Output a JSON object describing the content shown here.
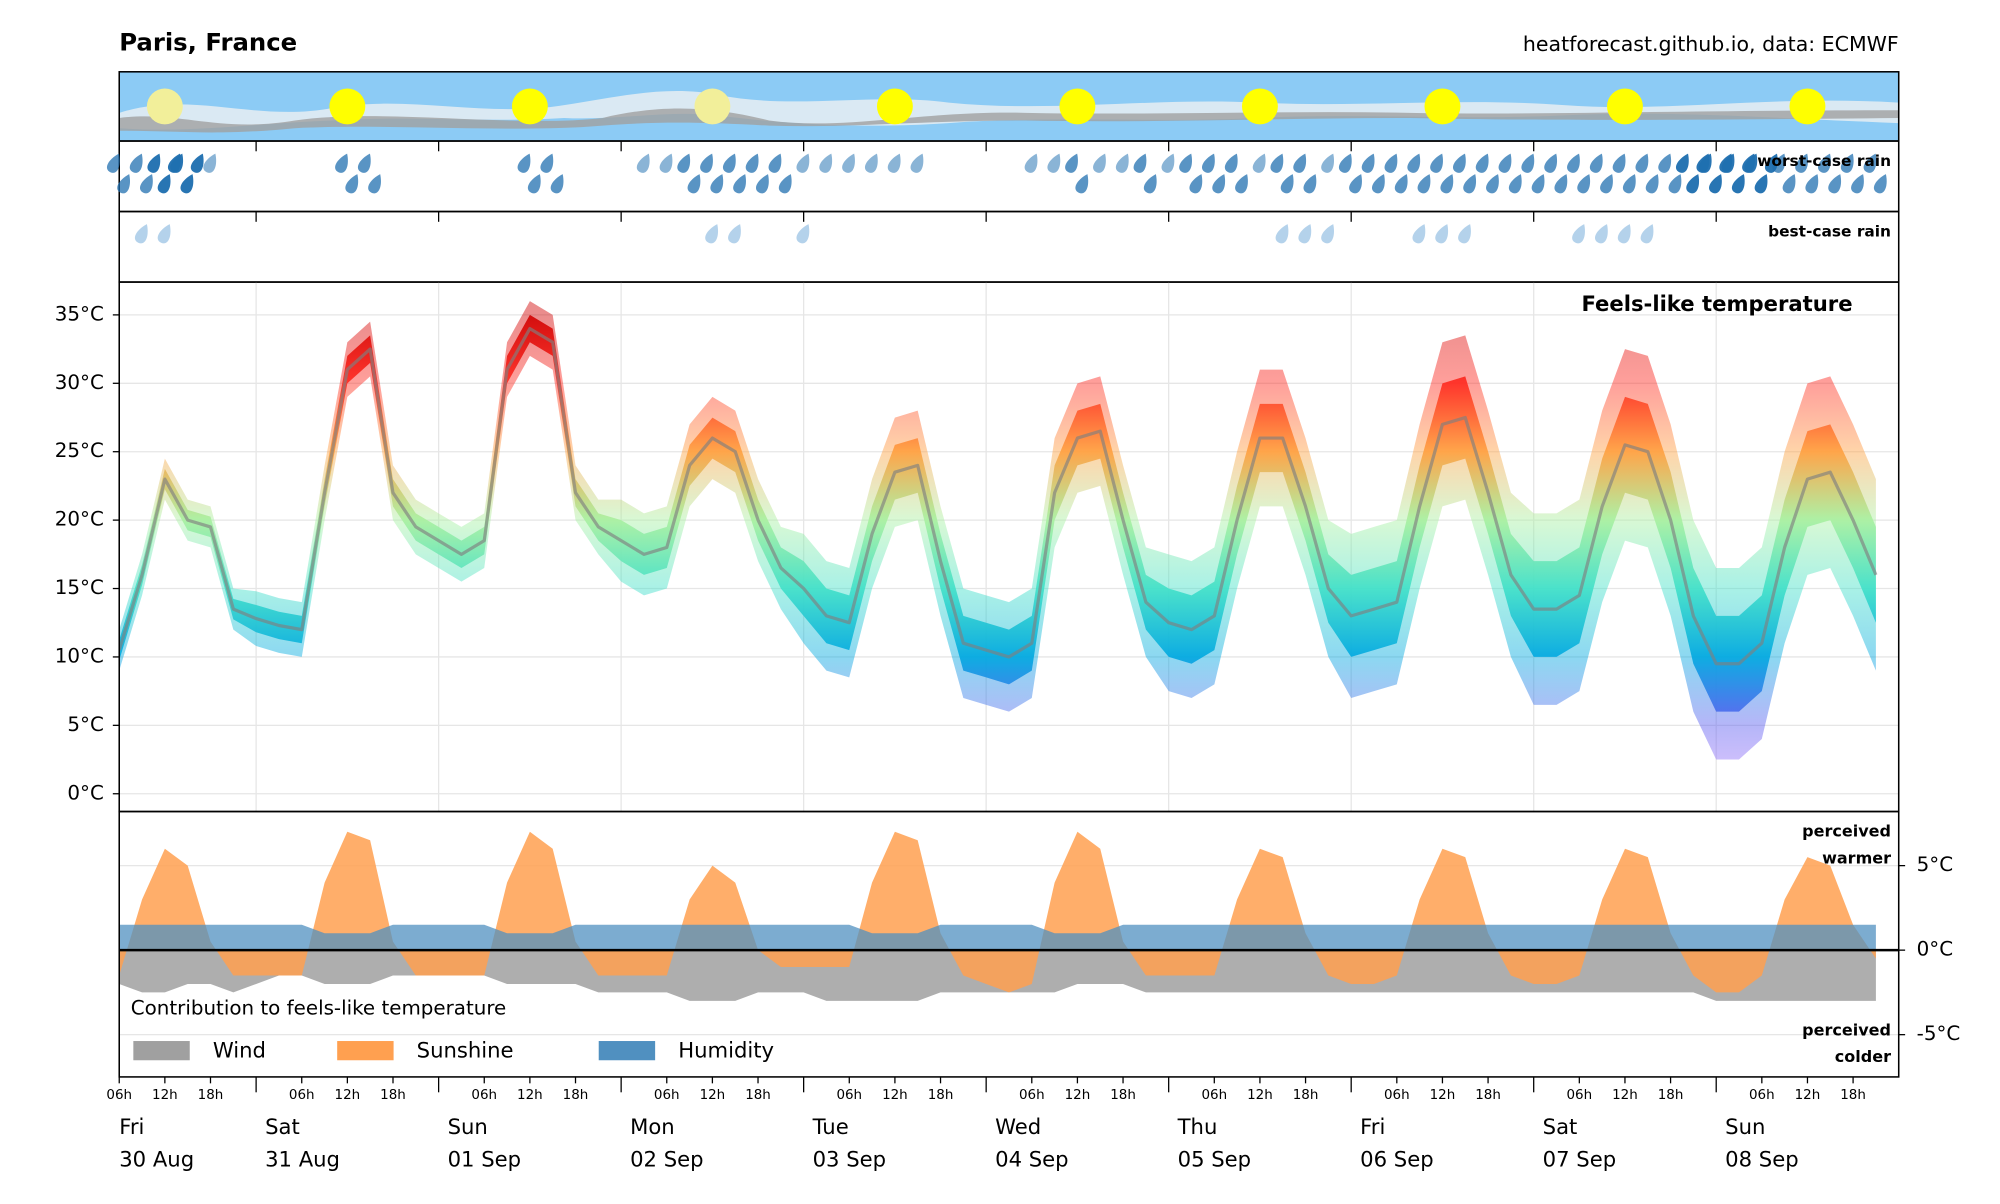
{
  "chart_data": {
    "type": "meteogram",
    "title": "Paris, France",
    "subtitle": "heatforecast.github.io, data: ECMWF",
    "x": [
      6,
      9,
      12,
      15,
      18,
      21,
      24,
      27,
      30,
      33,
      36,
      39,
      42,
      45,
      48,
      51,
      54,
      57,
      60,
      63,
      66,
      69,
      72,
      75,
      78,
      81,
      84,
      87,
      90,
      93,
      96,
      99,
      102,
      105,
      108,
      111,
      114,
      117,
      120,
      123,
      126,
      129,
      132,
      135,
      138,
      141,
      144,
      147,
      150,
      153,
      156,
      159,
      162,
      165,
      168,
      171,
      174,
      177,
      180,
      183,
      186,
      189,
      192,
      195,
      198,
      201,
      204,
      207,
      210,
      213,
      216,
      219,
      222,
      225,
      228,
      231,
      234,
      237
    ],
    "xlim": [
      6,
      240
    ],
    "days": [
      {
        "value": 0,
        "weekday": "Fri",
        "date": "30 Aug"
      },
      {
        "value": 24,
        "weekday": "Sat",
        "date": "31 Aug"
      },
      {
        "value": 48,
        "weekday": "Sun",
        "date": "01 Sep"
      },
      {
        "value": 72,
        "weekday": "Mon",
        "date": "02 Sep"
      },
      {
        "value": 96,
        "weekday": "Tue",
        "date": "03 Sep"
      },
      {
        "value": 120,
        "weekday": "Wed",
        "date": "04 Sep"
      },
      {
        "value": 144,
        "weekday": "Thu",
        "date": "05 Sep"
      },
      {
        "value": 168,
        "weekday": "Fri",
        "date": "06 Sep"
      },
      {
        "value": 192,
        "weekday": "Sat",
        "date": "07 Sep"
      },
      {
        "value": 216,
        "weekday": "Sun",
        "date": "08 Sep"
      }
    ],
    "hour_ticks": [
      {
        "value": 6,
        "label": "06h"
      },
      {
        "value": 12,
        "label": "12h"
      },
      {
        "value": 18,
        "label": "18h"
      }
    ],
    "rain": {
      "series": [
        {
          "name": "worst-case rain",
          "color": "#1f6fb0",
          "values": [
            2,
            2,
            3,
            3,
            1,
            0,
            0,
            0,
            0,
            0,
            2,
            2,
            0,
            0,
            0,
            0,
            0,
            0,
            2,
            2,
            0,
            0,
            0,
            1,
            1,
            2,
            2,
            2,
            2,
            2,
            1,
            1,
            1,
            1,
            1,
            1,
            0,
            0,
            0,
            0,
            1,
            1,
            2,
            1,
            1,
            2,
            1,
            2,
            2,
            2,
            1,
            2,
            2,
            1,
            2,
            2,
            2,
            2,
            2,
            2,
            2,
            2,
            2,
            2,
            2,
            2,
            2,
            2,
            2,
            3,
            3,
            3,
            3,
            2,
            2,
            2,
            2,
            2
          ]
        },
        {
          "name": "best-case rain",
          "color": "#6fa8d8",
          "values": [
            0,
            1,
            1,
            0,
            0,
            0,
            0,
            0,
            0,
            0,
            0,
            0,
            0,
            0,
            0,
            0,
            0,
            0,
            0,
            0,
            0,
            0,
            0,
            0,
            0,
            0,
            1,
            1,
            0,
            0,
            1,
            0,
            0,
            0,
            0,
            0,
            0,
            0,
            0,
            0,
            0,
            0,
            0,
            0,
            0,
            0,
            0,
            0,
            0,
            0,
            0,
            1,
            1,
            1,
            0,
            0,
            0,
            1,
            1,
            1,
            0,
            0,
            0,
            0,
            1,
            1,
            1,
            1,
            0,
            0,
            0,
            0,
            0,
            0,
            0,
            0,
            0,
            0
          ]
        }
      ]
    },
    "temperature": {
      "label": "Feels-like temperature",
      "ylim": [
        -1.3,
        37.4
      ],
      "yticks": [
        {
          "value": 0,
          "label": "0°C"
        },
        {
          "value": 5,
          "label": "5°C"
        },
        {
          "value": 10,
          "label": "10°C"
        },
        {
          "value": 15,
          "label": "15°C"
        },
        {
          "value": 20,
          "label": "20°C"
        },
        {
          "value": 25,
          "label": "25°C"
        },
        {
          "value": 30,
          "label": "30°C"
        },
        {
          "value": 35,
          "label": "35°C"
        }
      ],
      "grid": true,
      "colormap": [
        {
          "value": 0,
          "color": "#c080ff"
        },
        {
          "value": 5,
          "color": "#5a5cf0"
        },
        {
          "value": 10,
          "color": "#00a8e0"
        },
        {
          "value": 15,
          "color": "#40e0c8"
        },
        {
          "value": 20,
          "color": "#a8f0a0"
        },
        {
          "value": 25,
          "color": "#ffa040"
        },
        {
          "value": 30,
          "color": "#ff2a20"
        },
        {
          "value": 35,
          "color": "#d00000"
        }
      ],
      "median": {
        "color": "#808080",
        "values": [
          10.5,
          16,
          23,
          20,
          19.5,
          13.5,
          12.8,
          12.3,
          12,
          22,
          31,
          32.5,
          22,
          19.5,
          18.5,
          17.5,
          18.5,
          31,
          34,
          33,
          22,
          19.5,
          18.5,
          17.5,
          18,
          24,
          26,
          25,
          20,
          16.5,
          15,
          13,
          12.5,
          19,
          23.5,
          24,
          17,
          11,
          10.5,
          10,
          11,
          22,
          26,
          26.5,
          20,
          14,
          12.5,
          12,
          13,
          20,
          26,
          26,
          21,
          15,
          13,
          13.5,
          14,
          21,
          27,
          27.5,
          22,
          16,
          13.5,
          13.5,
          14.5,
          21,
          25.5,
          25,
          20,
          13,
          9.5,
          9.5,
          11,
          18,
          23,
          23.5,
          20,
          16
        ]
      },
      "low": {
        "values": [
          9,
          14.5,
          21.5,
          18.5,
          18,
          12,
          10.8,
          10.3,
          10,
          20,
          29,
          30.5,
          20,
          17.5,
          16.5,
          15.5,
          16.5,
          29,
          32,
          31,
          20,
          17.5,
          15.5,
          14.5,
          15,
          21,
          23,
          22,
          17,
          13.5,
          11,
          9,
          8.5,
          15,
          19.5,
          20,
          13,
          7,
          6.5,
          6,
          7,
          18,
          22,
          22.5,
          16,
          10,
          7.5,
          7,
          8,
          15,
          21,
          21,
          16,
          10,
          7,
          7.5,
          8,
          15,
          21,
          21.5,
          16,
          10,
          6.5,
          6.5,
          7.5,
          14,
          18.5,
          18,
          13,
          6,
          2.5,
          2.5,
          4,
          11,
          16,
          16.5,
          13,
          9
        ]
      },
      "high": {
        "values": [
          12,
          17.5,
          24.5,
          21.5,
          21,
          15,
          14.8,
          14.3,
          14,
          24,
          33,
          34.5,
          24,
          21.5,
          20.5,
          19.5,
          20.5,
          33,
          36,
          35,
          24,
          21.5,
          21.5,
          20.5,
          21,
          27,
          29,
          28,
          23,
          19.5,
          19,
          17,
          16.5,
          23,
          27.5,
          28,
          21,
          15,
          14.5,
          14,
          15,
          26,
          30,
          30.5,
          24,
          18,
          17.5,
          17,
          18,
          25,
          31,
          31,
          26,
          20,
          19,
          19.5,
          20,
          27,
          33,
          33.5,
          28,
          22,
          20.5,
          20.5,
          21.5,
          28,
          32.5,
          32,
          27,
          20,
          16.5,
          16.5,
          18,
          25,
          30,
          30.5,
          27,
          23
        ]
      }
    },
    "contribution": {
      "title": "Contribution to feels-like temperature",
      "ylim": [
        -7.5,
        8.2
      ],
      "yticks": [
        {
          "value": -5,
          "label": "-5°C"
        },
        {
          "value": 0,
          "label": "0°C"
        },
        {
          "value": 5,
          "label": "5°C"
        }
      ],
      "upper_label": [
        "perceived",
        "warmer"
      ],
      "lower_label": [
        "perceived",
        "colder"
      ],
      "series": [
        {
          "name": "Wind",
          "color": "#a0a0a0",
          "values": [
            -2,
            -2.5,
            -2.5,
            -2,
            -2,
            -2.5,
            -2,
            -1.5,
            -1.5,
            -2,
            -2,
            -2,
            -1.5,
            -1.5,
            -1.5,
            -1.5,
            -1.5,
            -2,
            -2,
            -2,
            -2,
            -2.5,
            -2.5,
            -2.5,
            -2.5,
            -3,
            -3,
            -3,
            -2.5,
            -2.5,
            -2.5,
            -3,
            -3,
            -3,
            -3,
            -3,
            -2.5,
            -2.5,
            -2.5,
            -2.5,
            -2.5,
            -2.5,
            -2,
            -2,
            -2,
            -2.5,
            -2.5,
            -2.5,
            -2.5,
            -2.5,
            -2.5,
            -2.5,
            -2.5,
            -2.5,
            -2.5,
            -2.5,
            -2.5,
            -2.5,
            -2.5,
            -2.5,
            -2.5,
            -2.5,
            -2.5,
            -2.5,
            -2.5,
            -2.5,
            -2.5,
            -2.5,
            -2.5,
            -2.5,
            -3,
            -3,
            -3,
            -3,
            -3,
            -3,
            -3,
            -3
          ]
        },
        {
          "name": "Sunshine",
          "color": "#ffa050",
          "values": [
            -1.5,
            3,
            6,
            5,
            0.5,
            -1.5,
            -1.5,
            -1.5,
            -1.5,
            4,
            7,
            6.5,
            0.5,
            -1.5,
            -1.5,
            -1.5,
            -1.5,
            4,
            7,
            6,
            0.5,
            -1.5,
            -1.5,
            -1.5,
            -1.5,
            3,
            5,
            4,
            0,
            -1,
            -1,
            -1,
            -1,
            4,
            7,
            6.5,
            1,
            -1.5,
            -2,
            -2.5,
            -2,
            4,
            7,
            6,
            0.5,
            -1.5,
            -1.5,
            -1.5,
            -1.5,
            3,
            6,
            5.5,
            1,
            -1.5,
            -2,
            -2,
            -1.5,
            3,
            6,
            5.5,
            1,
            -1.5,
            -2,
            -2,
            -1.5,
            3,
            6,
            5.5,
            1,
            -1.5,
            -2.5,
            -2.5,
            -1.5,
            3,
            5.5,
            5,
            1.5,
            -0.5
          ]
        },
        {
          "name": "Humidity",
          "color": "#5090c0",
          "values": [
            1.5,
            1.5,
            1.5,
            1.5,
            1.5,
            1.5,
            1.5,
            1.5,
            1.5,
            1,
            1,
            1,
            1.5,
            1.5,
            1.5,
            1.5,
            1.5,
            1,
            1,
            1,
            1.5,
            1.5,
            1.5,
            1.5,
            1.5,
            1.5,
            1.5,
            1.5,
            1.5,
            1.5,
            1.5,
            1.5,
            1.5,
            1,
            1,
            1,
            1.5,
            1.5,
            1.5,
            1.5,
            1.5,
            1,
            1,
            1,
            1.5,
            1.5,
            1.5,
            1.5,
            1.5,
            1.5,
            1.5,
            1.5,
            1.5,
            1.5,
            1.5,
            1.5,
            1.5,
            1.5,
            1.5,
            1.5,
            1.5,
            1.5,
            1.5,
            1.5,
            1.5,
            1.5,
            1.5,
            1.5,
            1.5,
            1.5,
            1.5,
            1.5,
            1.5,
            1.5,
            1.5,
            1.5,
            1.5,
            1.5
          ]
        }
      ]
    }
  }
}
